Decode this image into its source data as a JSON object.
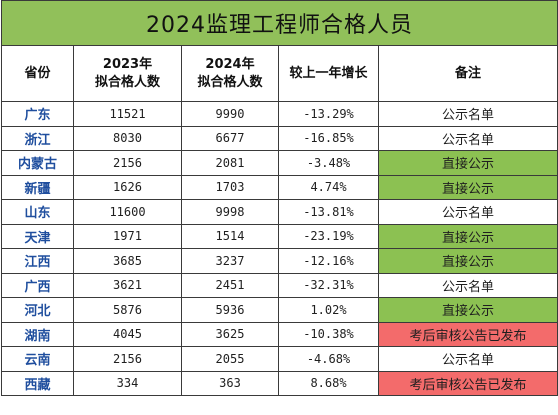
{
  "title": "2024监理工程师合格人员",
  "headers": {
    "province": "省份",
    "y2023_line1": "2023年",
    "y2023_line2": "拟合格人数",
    "y2024_line1": "2024年",
    "y2024_line2": "拟合格人数",
    "growth": "较上一年增长",
    "note": "备注"
  },
  "colors": {
    "title_bg": "#91c05a",
    "direct_bg": "#8cc152",
    "published_bg": "#f36b6b",
    "province_text": "#1f4e9e"
  },
  "rows": [
    {
      "province": "广东",
      "y2023": "11521",
      "y2024": "9990",
      "growth": "-13.29%",
      "note": "公示名单",
      "status": "plain"
    },
    {
      "province": "浙江",
      "y2023": "8030",
      "y2024": "6677",
      "growth": "-16.85%",
      "note": "公示名单",
      "status": "plain"
    },
    {
      "province": "内蒙古",
      "y2023": "2156",
      "y2024": "2081",
      "growth": "-3.48%",
      "note": "直接公示",
      "status": "green"
    },
    {
      "province": "新疆",
      "y2023": "1626",
      "y2024": "1703",
      "growth": "4.74%",
      "note": "直接公示",
      "status": "green"
    },
    {
      "province": "山东",
      "y2023": "11600",
      "y2024": "9998",
      "growth": "-13.81%",
      "note": "公示名单",
      "status": "plain"
    },
    {
      "province": "天津",
      "y2023": "1971",
      "y2024": "1514",
      "growth": "-23.19%",
      "note": "直接公示",
      "status": "green"
    },
    {
      "province": "江西",
      "y2023": "3685",
      "y2024": "3237",
      "growth": "-12.16%",
      "note": "直接公示",
      "status": "green"
    },
    {
      "province": "广西",
      "y2023": "3621",
      "y2024": "2451",
      "growth": "-32.31%",
      "note": "公示名单",
      "status": "plain"
    },
    {
      "province": "河北",
      "y2023": "5876",
      "y2024": "5936",
      "growth": "1.02%",
      "note": "直接公示",
      "status": "green"
    },
    {
      "province": "湖南",
      "y2023": "4045",
      "y2024": "3625",
      "growth": "-10.38%",
      "note": "考后审核公告已发布",
      "status": "red"
    },
    {
      "province": "云南",
      "y2023": "2156",
      "y2024": "2055",
      "growth": "-4.68%",
      "note": "公示名单",
      "status": "plain"
    },
    {
      "province": "西藏",
      "y2023": "334",
      "y2024": "363",
      "growth": "8.68%",
      "note": "考后审核公告已发布",
      "status": "red"
    }
  ]
}
